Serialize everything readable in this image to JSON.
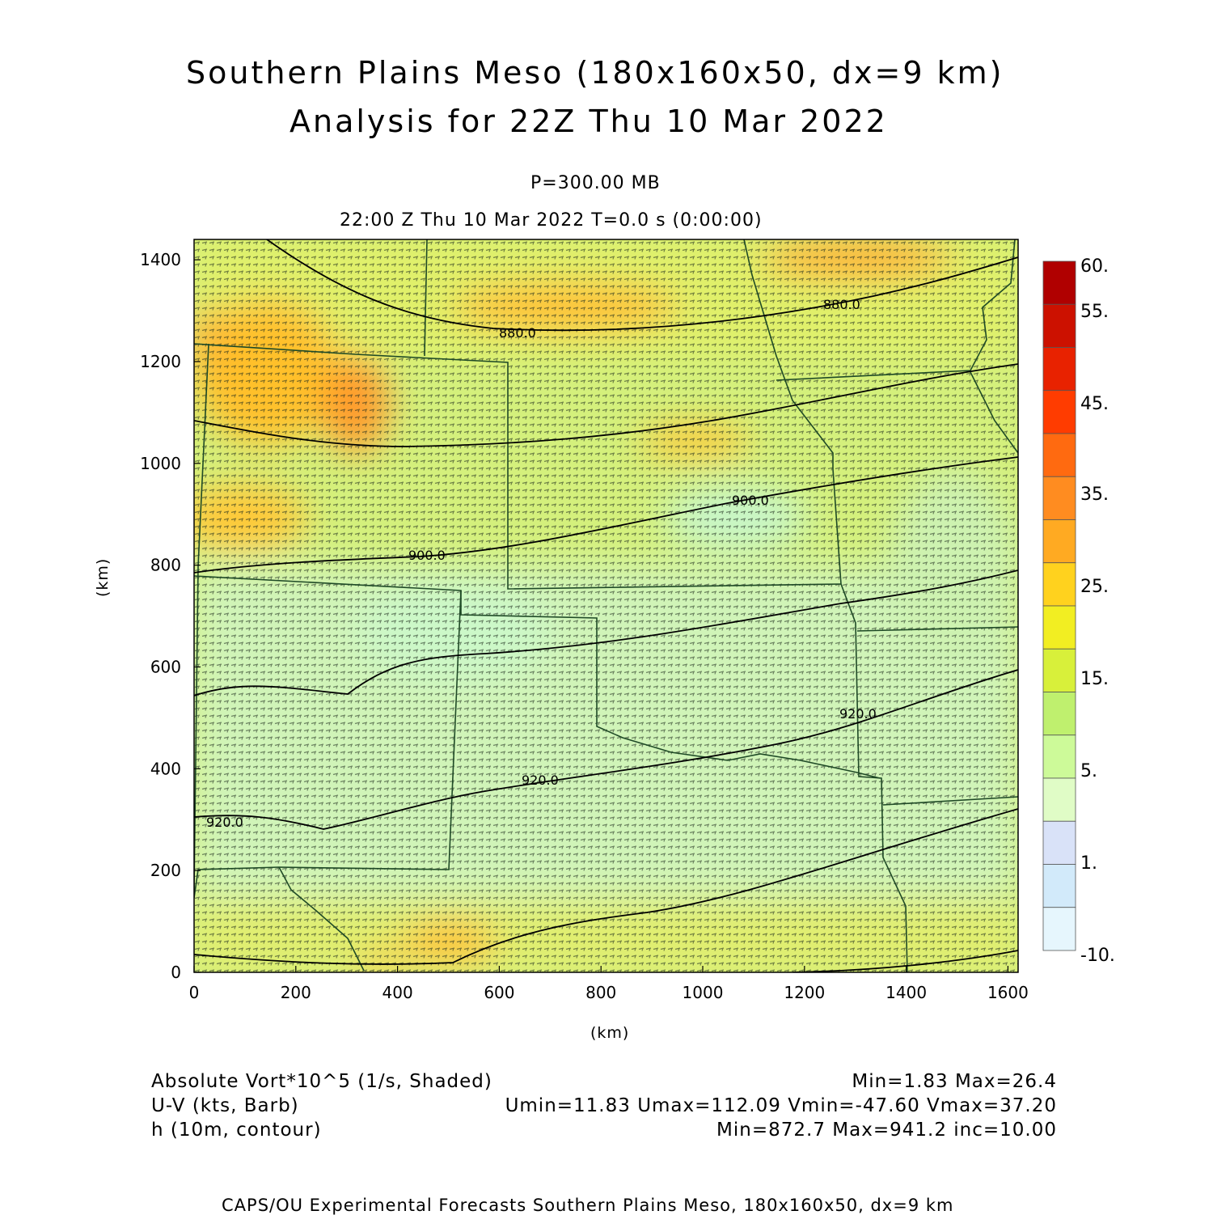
{
  "title_line1": "Southern Plains Meso (180x160x50, dx=9 km)",
  "title_line2": "Analysis for 22Z Thu 10 Mar 2022",
  "level_label": "P=300.00 MB",
  "time_label": "22:00 Z Thu 10 Mar 2022    T=0.0 s (0:00:00)",
  "axes": {
    "x_label": "(km)",
    "y_label": "(km)",
    "x_ticks": [
      "0",
      "200",
      "400",
      "600",
      "800",
      "1000",
      "1200",
      "1400",
      "1600"
    ],
    "y_ticks": [
      "0",
      "200",
      "400",
      "600",
      "800",
      "1000",
      "1200",
      "1400"
    ],
    "x_range_km": [
      0,
      1620
    ],
    "y_range_km": [
      0,
      1440
    ]
  },
  "colorbar": {
    "labels": [
      "60.",
      "55.",
      "45.",
      "35.",
      "25.",
      "15.",
      "5.",
      "1.",
      "-10."
    ],
    "colors": [
      "#b00000",
      "#cc1100",
      "#e82200",
      "#ff3c00",
      "#ff6a10",
      "#ff8c20",
      "#ffaa22",
      "#ffd21e",
      "#f2ee22",
      "#d8f03a",
      "#bff06e",
      "#cdfa99",
      "#e0fcc6",
      "#d9e2f8",
      "#d2eafa",
      "#e6f6fd"
    ]
  },
  "contour_labels": {
    "c880a": "880.0",
    "c880b": "880.0",
    "c900a": "900.0",
    "c900b": "900.0",
    "c920a": "920.0",
    "c920b": "920.0",
    "c920c": "920.0"
  },
  "legend": {
    "line1_left": "Absolute Vort*10^5 (1/s, Shaded)",
    "line1_right": "Min=1.83 Max=26.4",
    "line2_left": "U-V (kts, Barb)",
    "line2_right": "Umin=11.83 Umax=112.09 Vmin=-47.60 Vmax=37.20",
    "line3_left": "h (10m, contour)",
    "line3_right": "Min=872.7 Max=941.2 inc=10.00"
  },
  "footer": "CAPS/OU Experimental Forecasts  Southern Plains Meso, 180x160x50, dx=9 km"
}
